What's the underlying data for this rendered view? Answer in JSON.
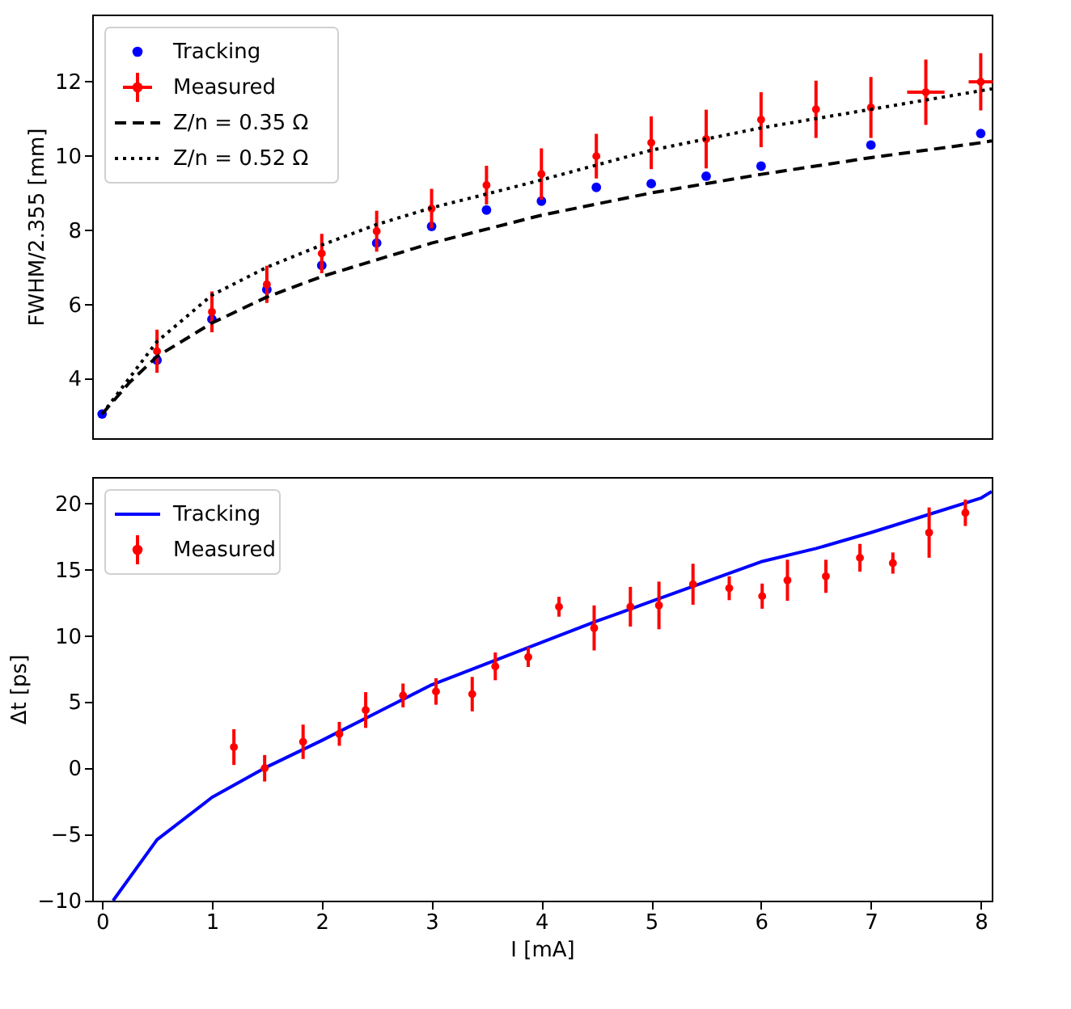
{
  "chart_data": [
    {
      "type": "scatter",
      "ylabel": "FWHM/2.355 [mm]",
      "xlim": [
        -0.09,
        8.1
      ],
      "xticks": [
        0,
        1,
        2,
        3,
        4,
        5,
        6,
        7,
        8
      ],
      "ylim": [
        2.4,
        13.8
      ],
      "yticks": [
        4,
        6,
        8,
        10,
        12
      ],
      "tick_labels": "y",
      "grid": false,
      "legend": "top left",
      "series": [
        {
          "name": "Tracking",
          "type": "scatter",
          "marker": "circle",
          "color": "#0000ff",
          "x": [
            0,
            0.5,
            1,
            1.5,
            2,
            2.5,
            3,
            3.5,
            4,
            4.5,
            5,
            5.5,
            6,
            7,
            8
          ],
          "values": [
            3.05,
            4.5,
            5.6,
            6.4,
            7.05,
            7.65,
            8.1,
            8.54,
            8.78,
            9.15,
            9.25,
            9.45,
            9.72,
            10.29,
            10.6
          ]
        },
        {
          "name": "Measured",
          "type": "scatter",
          "marker": "circle",
          "color": "#ff0000",
          "x": [
            0.5,
            1,
            1.5,
            2,
            2.5,
            3,
            3.5,
            4,
            4.5,
            5,
            5.5,
            6,
            6.5,
            7,
            7.5,
            8
          ],
          "values": [
            4.74,
            5.8,
            6.54,
            7.37,
            7.97,
            8.58,
            9.21,
            9.51,
            9.99,
            10.35,
            10.45,
            10.97,
            11.25,
            11.3,
            11.71,
            11.99
          ],
          "errors": [
            0.58,
            0.55,
            0.5,
            0.53,
            0.55,
            0.53,
            0.52,
            0.69,
            0.6,
            0.71,
            0.79,
            0.74,
            0.77,
            0.82,
            0.88,
            0.77
          ],
          "xerrors": [
            null,
            null,
            null,
            null,
            null,
            null,
            null,
            null,
            null,
            null,
            null,
            null,
            null,
            null,
            0.17,
            0.11
          ]
        },
        {
          "name": "Z/n = 0.35 Ω",
          "type": "line",
          "color": "#000000",
          "line_style": "dashed",
          "x": [
            0,
            0.25,
            0.5,
            1,
            1.5,
            2,
            2.5,
            3,
            4,
            5,
            6,
            7,
            8,
            8.1
          ],
          "values": [
            3.05,
            3.9,
            4.6,
            5.5,
            6.2,
            6.75,
            7.2,
            7.65,
            8.4,
            9.0,
            9.5,
            9.95,
            10.35,
            10.4
          ]
        },
        {
          "name": "Z/n = 0.52 Ω",
          "type": "line",
          "color": "#000000",
          "line_style": "dotted",
          "x": [
            0,
            0.5,
            1,
            1.5,
            2,
            2.5,
            3,
            3.5,
            4,
            5,
            6,
            7,
            8,
            8.1
          ],
          "values": [
            3.05,
            5.0,
            6.25,
            7.0,
            7.6,
            8.15,
            8.6,
            8.97,
            9.35,
            10.15,
            10.75,
            11.25,
            11.75,
            11.8
          ]
        }
      ]
    },
    {
      "type": "scatter",
      "xlabel": "I [mA]",
      "ylabel": "Δt [ps]",
      "xlim": [
        -0.09,
        8.1
      ],
      "xticks": [
        0,
        1,
        2,
        3,
        4,
        5,
        6,
        7,
        8
      ],
      "ylim": [
        -10,
        22
      ],
      "yticks": [
        -10,
        -5,
        0,
        5,
        10,
        15,
        20
      ],
      "grid": false,
      "legend": "top left",
      "series": [
        {
          "name": "Tracking",
          "type": "line",
          "color": "#0000ff",
          "line_style": "solid",
          "x": [
            0.1,
            0.5,
            1,
            1.5,
            2,
            2.5,
            3,
            3.5,
            4,
            4.5,
            5,
            5.5,
            6,
            6.5,
            7,
            7.5,
            8,
            8.1
          ],
          "values": [
            -10,
            -5.4,
            -2.2,
            0.1,
            2.1,
            4.2,
            6.3,
            7.9,
            9.5,
            11.1,
            12.6,
            14.1,
            15.6,
            16.6,
            17.8,
            19.1,
            20.4,
            20.9
          ]
        },
        {
          "name": "Measured",
          "type": "scatter",
          "marker": "circle",
          "color": "#ff0000",
          "x": [
            1.2,
            1.48,
            1.83,
            2.16,
            2.4,
            2.74,
            3.04,
            3.37,
            3.58,
            3.88,
            4.16,
            4.48,
            4.81,
            5.07,
            5.38,
            5.71,
            6.01,
            6.24,
            6.59,
            6.9,
            7.2,
            7.53,
            7.86
          ],
          "values": [
            1.6,
            0.0,
            2.0,
            2.6,
            4.4,
            5.5,
            5.8,
            5.6,
            7.7,
            8.4,
            12.2,
            10.6,
            12.2,
            12.3,
            13.9,
            13.6,
            13.0,
            14.2,
            14.5,
            15.9,
            15.5,
            17.8,
            19.3
          ],
          "errors": [
            1.35,
            1.0,
            1.3,
            0.9,
            1.35,
            0.9,
            1.0,
            1.3,
            1.05,
            0.75,
            0.75,
            1.7,
            1.5,
            1.8,
            1.55,
            0.9,
            0.95,
            1.55,
            1.25,
            1.05,
            0.8,
            1.9,
            1.0
          ]
        }
      ]
    }
  ]
}
